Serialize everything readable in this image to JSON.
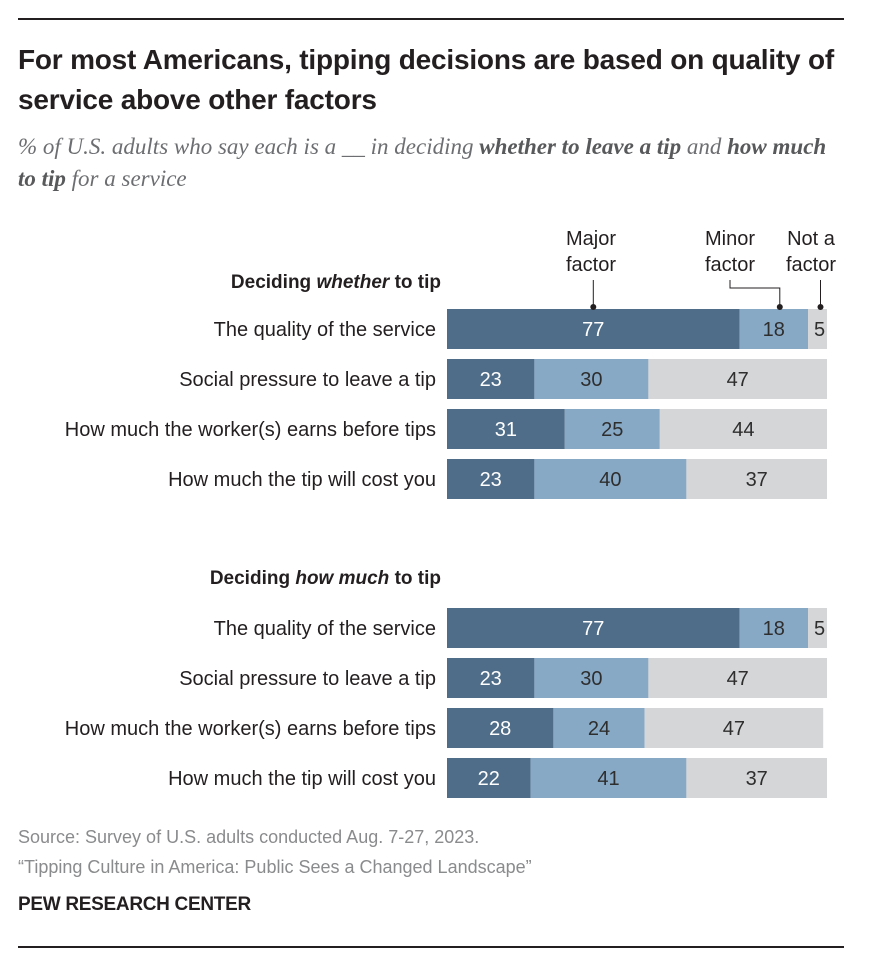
{
  "title": "For most Americans, tipping decisions are based on quality of service above other factors",
  "subtitle": {
    "part1": "% of U.S. adults who say each is a __ in deciding ",
    "bold1": "whether to leave a tip",
    "part2": " and ",
    "bold2": "how much to tip",
    "part3": " for a service"
  },
  "chart_data": {
    "type": "bar",
    "orientation": "horizontal",
    "stacked": true,
    "legend": {
      "major": [
        "Major",
        "factor"
      ],
      "minor": [
        "Minor",
        "factor"
      ],
      "not": [
        "Not a",
        "factor"
      ]
    },
    "colors": {
      "major": "#4f6d89",
      "minor": "#87a9c6",
      "not": "#d5d6d8"
    },
    "groups": [
      {
        "title_pre": "Deciding ",
        "title_em": "whether",
        "title_post": " to tip",
        "categories": [
          "The quality of the service",
          "Social pressure to leave a tip",
          "How much the worker(s) earns before tips",
          "How much the tip will cost you"
        ],
        "series": [
          {
            "name": "Major factor",
            "key": "major",
            "values": [
              77,
              23,
              31,
              23
            ]
          },
          {
            "name": "Minor factor",
            "key": "minor",
            "values": [
              18,
              30,
              25,
              40
            ]
          },
          {
            "name": "Not a factor",
            "key": "not",
            "values": [
              5,
              47,
              44,
              37
            ]
          }
        ]
      },
      {
        "title_pre": "Deciding ",
        "title_em": "how much",
        "title_post": " to tip",
        "categories": [
          "The quality of the service",
          "Social pressure to leave a tip",
          "How much the worker(s) earns before tips",
          "How much the tip will cost you"
        ],
        "series": [
          {
            "name": "Major factor",
            "key": "major",
            "values": [
              77,
              23,
              28,
              22
            ]
          },
          {
            "name": "Minor factor",
            "key": "minor",
            "values": [
              18,
              30,
              24,
              41
            ]
          },
          {
            "name": "Not a factor",
            "key": "not",
            "values": [
              5,
              47,
              47,
              37
            ]
          }
        ]
      }
    ]
  },
  "source": {
    "line1": "Source: Survey of U.S. adults conducted Aug. 7-27, 2023.",
    "line2": "“Tipping Culture in America: Public Sees a Changed Landscape”"
  },
  "brand": "PEW RESEARCH CENTER"
}
